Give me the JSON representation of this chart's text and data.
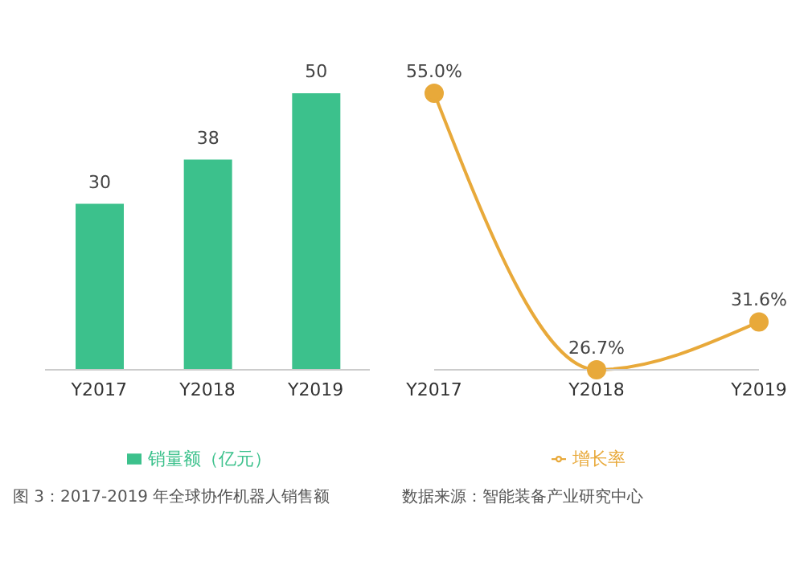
{
  "chart_data": [
    {
      "type": "bar",
      "categories": [
        "Y2017",
        "Y2018",
        "Y2019"
      ],
      "series": [
        {
          "name": "销量额（亿元）",
          "color": "#3cc18c",
          "values": [
            30,
            38,
            50
          ]
        }
      ],
      "data_labels": true,
      "tick_labels": "x",
      "legend": "bottom",
      "annotations": [
        "图 3：2017-2019 年全球协作机器人销售额"
      ]
    },
    {
      "type": "line",
      "categories": [
        "Y2017",
        "Y2018",
        "Y2019"
      ],
      "series": [
        {
          "name": "增长率",
          "color": "#e8a93a",
          "values": [
            55.0,
            26.7,
            31.6
          ],
          "value_labels": [
            "55.0%",
            "26.7%",
            "31.6%"
          ]
        }
      ],
      "marker": "circle",
      "tick_labels": "x",
      "legend": "bottom",
      "annotations": [
        "数据来源：智能装备产业研究中心"
      ]
    }
  ]
}
